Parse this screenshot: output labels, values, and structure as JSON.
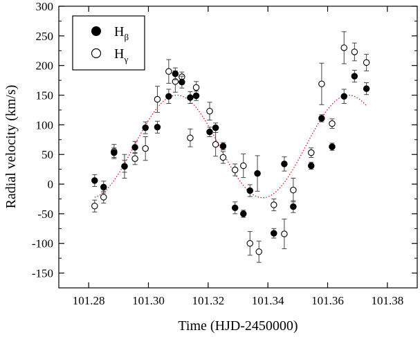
{
  "chart_data": {
    "type": "scatter",
    "title": "",
    "xlabel": "Time (HJD-2450000)",
    "ylabel": "Radial velocity (km/s)",
    "xlim": [
      101.27,
      101.39
    ],
    "ylim": [
      -175,
      300
    ],
    "x_ticks": [
      101.28,
      101.3,
      101.32,
      101.34,
      101.36,
      101.38
    ],
    "x_tick_labels": [
      "101.28",
      "101.30",
      "101.32",
      "101.34",
      "101.36",
      "101.38"
    ],
    "y_ticks": [
      -150,
      -100,
      -50,
      0,
      50,
      100,
      150,
      200,
      250,
      300
    ],
    "y_tick_labels": [
      "-150",
      "-100",
      "-50",
      "0",
      "50",
      "100",
      "150",
      "200",
      "250",
      "300"
    ],
    "grid": false,
    "legend_position": "top-left",
    "series": [
      {
        "name": "H",
        "name_subscript": "β",
        "marker": "filled-circle",
        "color": "#000000",
        "x": [
          101.282,
          101.285,
          101.2885,
          101.292,
          101.2955,
          101.299,
          101.303,
          101.3068,
          101.309,
          101.3112,
          101.314,
          101.316,
          101.3205,
          101.3225,
          101.325,
          101.329,
          101.3318,
          101.334,
          101.3365,
          101.342,
          101.3455,
          101.3485,
          101.3545,
          101.358,
          101.3615,
          101.3655,
          101.369,
          101.373
        ],
        "y": [
          6,
          -5,
          53,
          30,
          62,
          95,
          96,
          148,
          186,
          172,
          146,
          149,
          88,
          95,
          64,
          -40,
          -50,
          -11,
          18,
          -83,
          34,
          -38,
          31,
          111,
          63,
          148,
          182,
          161
        ],
        "err": [
          10,
          10,
          8,
          10,
          10,
          10,
          10,
          12,
          10,
          10,
          10,
          8,
          8,
          8,
          6,
          10,
          6,
          10,
          30,
          8,
          12,
          10,
          6,
          6,
          6,
          12,
          10,
          10
        ]
      },
      {
        "name": "H",
        "name_subscript": "γ",
        "marker": "open-circle",
        "color": "#000000",
        "x": [
          101.282,
          101.285,
          101.2885,
          101.292,
          101.2955,
          101.299,
          101.303,
          101.3068,
          101.309,
          101.3112,
          101.314,
          101.316,
          101.3205,
          101.3225,
          101.325,
          101.329,
          101.3318,
          101.334,
          101.337,
          101.342,
          101.3455,
          101.3485,
          101.3545,
          101.358,
          101.3615,
          101.3655,
          101.369,
          101.373
        ],
        "y": [
          -37,
          -22,
          55,
          30,
          43,
          60,
          143,
          190,
          173,
          181,
          78,
          163,
          123,
          67,
          45,
          24,
          31,
          -100,
          -114,
          -35,
          -84,
          -10,
          53,
          169,
          102,
          230,
          223,
          205
        ],
        "err": [
          10,
          10,
          12,
          20,
          10,
          20,
          22,
          20,
          18,
          8,
          15,
          10,
          15,
          20,
          10,
          10,
          20,
          20,
          18,
          10,
          25,
          20,
          8,
          35,
          8,
          27,
          15,
          14
        ]
      }
    ],
    "fit_curve": {
      "style": "dotted",
      "color": "#e00000",
      "x_start": 101.282,
      "x_end": 101.373,
      "mean": 63.5,
      "amplitude": 86.5,
      "period": 0.0575,
      "t_max": 101.3095
    }
  }
}
